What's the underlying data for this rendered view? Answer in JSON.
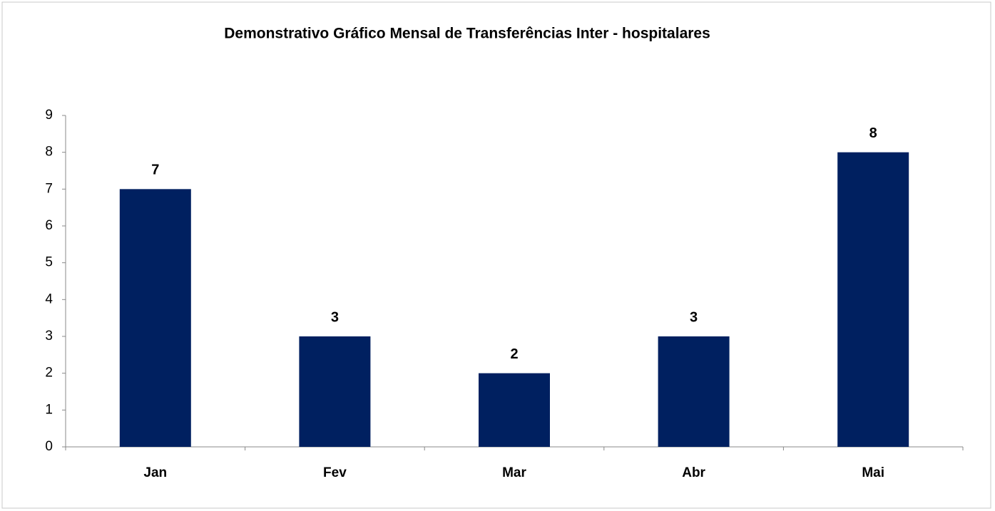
{
  "chart_data": {
    "type": "bar",
    "title": "Demonstrativo Gráfico Mensal de Transferências Inter - hospitalares",
    "categories": [
      "Jan",
      "Fev",
      "Mar",
      "Abr",
      "Mai"
    ],
    "values": [
      7,
      3,
      2,
      3,
      8
    ],
    "color": "#002060",
    "ylim": [
      0,
      9
    ],
    "yticks": [
      0,
      1,
      2,
      3,
      4,
      5,
      6,
      7,
      8,
      9
    ],
    "grid": false
  }
}
